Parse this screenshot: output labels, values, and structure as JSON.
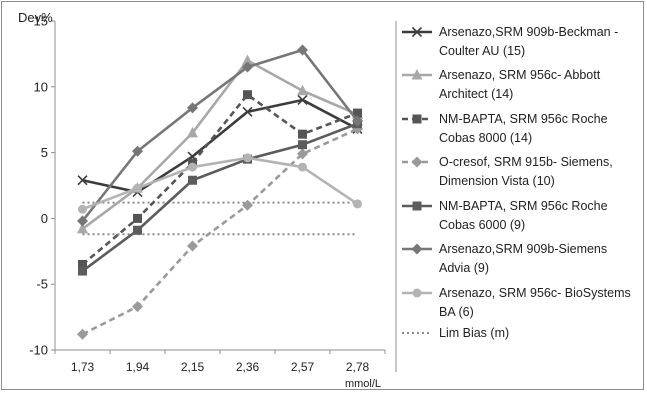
{
  "chart_data": {
    "type": "line",
    "ylabel": "Dev%",
    "xunit": "mmol/L",
    "ylim": [
      -10,
      15
    ],
    "yticks": [
      -10,
      -5,
      0,
      5,
      10,
      15
    ],
    "categories": [
      "1,73",
      "1,94",
      "2,15",
      "2,36",
      "2,57",
      "2,78"
    ],
    "grid": false,
    "legend_position": "right",
    "series": [
      {
        "name_lines": [
          "Arsenazo,SRM 909b-Beckman -",
          "Coulter AU (15)"
        ],
        "values": [
          2.9,
          2.0,
          4.7,
          8.1,
          9.0,
          6.8
        ],
        "color": "#3c3c3c",
        "dash": "solid",
        "marker": "x"
      },
      {
        "name_lines": [
          "Arsenazo, SRM 956c- Abbott",
          "Architect (14)"
        ],
        "values": [
          -0.8,
          2.3,
          6.5,
          12.0,
          9.7,
          7.9
        ],
        "color": "#a8a8a8",
        "dash": "solid",
        "marker": "triangle"
      },
      {
        "name_lines": [
          "NM-BAPTA, SRM 956c Roche",
          "Cobas 8000 (14)"
        ],
        "values": [
          -3.5,
          0.0,
          4.2,
          9.4,
          6.4,
          8.0
        ],
        "color": "#555555",
        "dash": "dashed",
        "marker": "square"
      },
      {
        "name_lines": [
          "O-cresof, SRM 915b- Siemens,",
          "Dimension Vista (10)"
        ],
        "values": [
          -8.8,
          -6.7,
          -2.1,
          1.0,
          4.9,
          6.8
        ],
        "color": "#9a9a9a",
        "dash": "dashed",
        "marker": "diamond"
      },
      {
        "name_lines": [
          "NM-BAPTA, SRM 956c Roche",
          "Cobas 6000 (9)"
        ],
        "values": [
          -4.0,
          -0.9,
          2.9,
          4.5,
          5.6,
          7.2
        ],
        "color": "#5c5c5c",
        "dash": "solid",
        "marker": "square"
      },
      {
        "name_lines": [
          "Arsenazo,SRM 909b-Siemens",
          "Advia (9)"
        ],
        "values": [
          -0.2,
          5.1,
          8.4,
          11.5,
          12.8,
          7.4
        ],
        "color": "#777777",
        "dash": "solid",
        "marker": "diamond"
      },
      {
        "name_lines": [
          "Arsenazo, SRM 956c- BioSystems",
          "BA (6)"
        ],
        "values": [
          0.7,
          2.3,
          3.9,
          4.6,
          3.9,
          1.1
        ],
        "color": "#b3b3b3",
        "dash": "solid",
        "marker": "circle"
      }
    ],
    "limit_lines": {
      "name": "Lim Bias (m)",
      "values": [
        1.2,
        -1.2
      ],
      "color": "#8a8a8a",
      "dash": "dotted"
    }
  }
}
